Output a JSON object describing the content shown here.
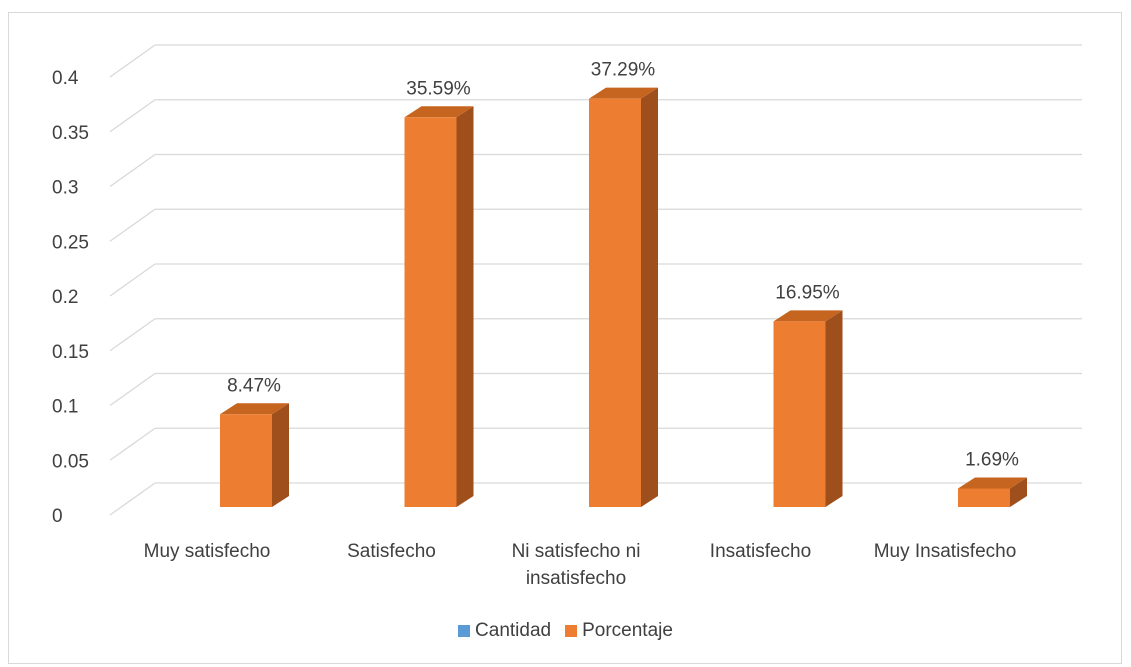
{
  "chart_data": {
    "type": "bar",
    "style": "3d-clustered-column",
    "categories": [
      "Muy satisfecho",
      "Satisfecho",
      "Ni satisfecho ni insatisfecho",
      "Insatisfecho",
      "Muy Insatisfecho"
    ],
    "category_label_lines": [
      [
        "Muy satisfecho"
      ],
      [
        "Satisfecho"
      ],
      [
        "Ni satisfecho ni",
        "insatisfecho"
      ],
      [
        "Insatisfecho"
      ],
      [
        "Muy Insatisfecho"
      ]
    ],
    "series": [
      {
        "name": "Cantidad",
        "color": "#5B9BD5",
        "values": [
          null,
          null,
          null,
          null,
          null
        ]
      },
      {
        "name": "Porcentaje",
        "color": "#ED7D31",
        "side_color": "#9E4F1C",
        "top_color": "#C5651F",
        "values": [
          0.0847,
          0.3559,
          0.3729,
          0.1695,
          0.0169
        ],
        "data_labels": [
          "8.47%",
          "35.59%",
          "37.29%",
          "16.95%",
          "1.69%"
        ]
      }
    ],
    "title": "",
    "xlabel": "",
    "ylabel": "",
    "ylim": [
      0,
      0.4
    ],
    "yticks": [
      0,
      0.05,
      0.1,
      0.15,
      0.2,
      0.25,
      0.3,
      0.35,
      0.4
    ],
    "ytick_labels": [
      "0",
      "0.05",
      "0.1",
      "0.15",
      "0.2",
      "0.25",
      "0.3",
      "0.35",
      "0.4"
    ],
    "grid": true,
    "grid_color": "#d9d9d9",
    "legend_position": "bottom"
  }
}
